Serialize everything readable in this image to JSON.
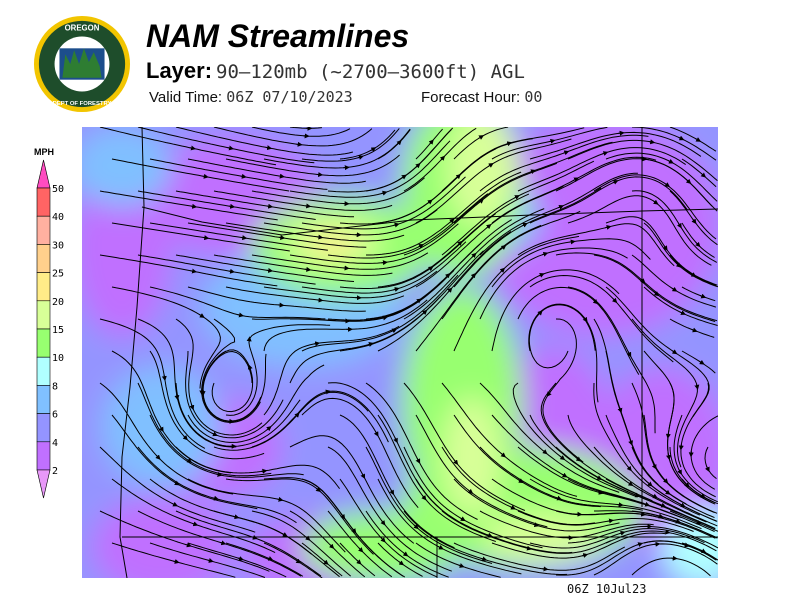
{
  "header": {
    "logo_text_top": "OREGON",
    "logo_text_bottom": "DEPARTMENT OF FORESTRY",
    "title": "NAM Streamlines",
    "layer_label": "Layer:",
    "layer_value": "90–120mb (~2700–3600ft) AGL",
    "valid_time_label": "Valid Time:",
    "valid_time_value": "06Z 07/10/2023",
    "forecast_hour_label": "Forecast Hour:",
    "forecast_hour_value": "00"
  },
  "legend": {
    "unit": "MPH",
    "levels": [
      "50",
      "40",
      "30",
      "25",
      "20",
      "15",
      "10",
      "8",
      "6",
      "4",
      "2"
    ],
    "colors": {
      "above": "#ff4cc0",
      "bands": [
        "#ff6464",
        "#ffb0a0",
        "#ffd08c",
        "#ffec88",
        "#d8ff98",
        "#98ff70",
        "#b0ffff",
        "#80c0ff",
        "#9494ff",
        "#c070ff"
      ],
      "below": "#e898f8"
    }
  },
  "map": {
    "stamp": "06Z 10Jul23"
  }
}
